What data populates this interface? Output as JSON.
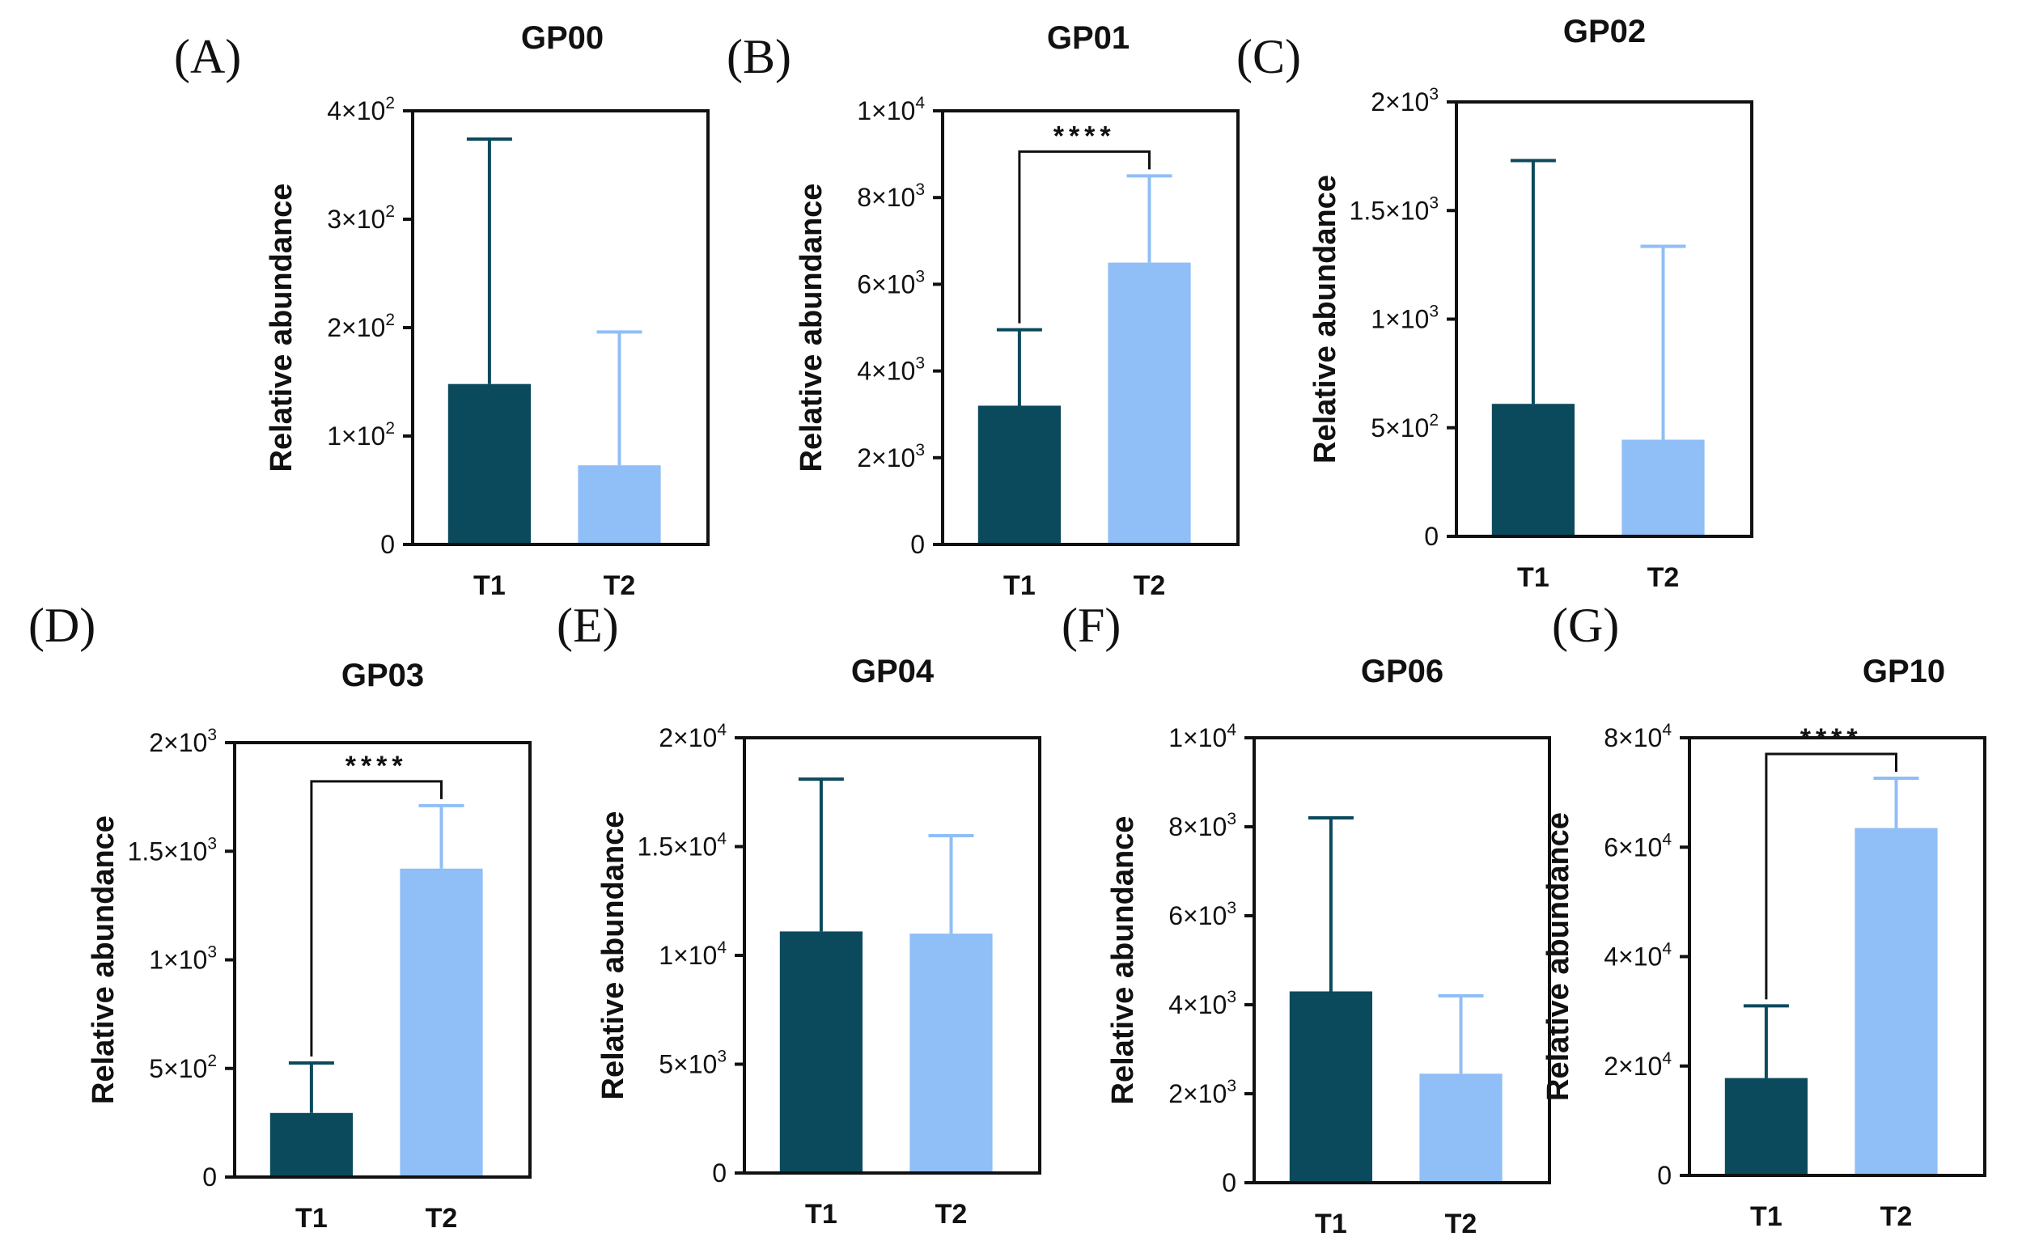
{
  "colors": {
    "T1": "#0b4a5c",
    "T2": "#90bef6",
    "axis": "#111111"
  },
  "chart_data": [
    {
      "panel": "(A)",
      "title": "GP00",
      "type": "bar",
      "ylabel": "Relative abundance",
      "categories": [
        "T1",
        "T2"
      ],
      "values": [
        148,
        73
      ],
      "errors": [
        226,
        123
      ],
      "ylim": [
        0,
        400
      ],
      "yticks": [
        {
          "v": 0,
          "m": "0",
          "e": ""
        },
        {
          "v": 100,
          "m": "1×10",
          "e": "2"
        },
        {
          "v": 200,
          "m": "2×10",
          "e": "2"
        },
        {
          "v": 300,
          "m": "3×10",
          "e": "2"
        },
        {
          "v": 400,
          "m": "4×10",
          "e": "2"
        }
      ],
      "significance": null
    },
    {
      "panel": "(B)",
      "title": "GP01",
      "type": "bar",
      "ylabel": "Relative abundance",
      "categories": [
        "T1",
        "T2"
      ],
      "values": [
        3200,
        6500
      ],
      "errors": [
        1750,
        2000
      ],
      "ylim": [
        0,
        10000
      ],
      "yticks": [
        {
          "v": 0,
          "m": "0",
          "e": ""
        },
        {
          "v": 2000,
          "m": "2×10",
          "e": "3"
        },
        {
          "v": 4000,
          "m": "4×10",
          "e": "3"
        },
        {
          "v": 6000,
          "m": "6×10",
          "e": "3"
        },
        {
          "v": 8000,
          "m": "8×10",
          "e": "3"
        },
        {
          "v": 10000,
          "m": "1×10",
          "e": "4"
        }
      ],
      "significance": "****"
    },
    {
      "panel": "(C)",
      "title": "GP02",
      "type": "bar",
      "ylabel": "Relative abundance",
      "categories": [
        "T1",
        "T2"
      ],
      "values": [
        610,
        445
      ],
      "errors": [
        1120,
        890
      ],
      "ylim": [
        0,
        2000
      ],
      "yticks": [
        {
          "v": 0,
          "m": "0",
          "e": ""
        },
        {
          "v": 500,
          "m": "5×10",
          "e": "2"
        },
        {
          "v": 1000,
          "m": "1×10",
          "e": "3"
        },
        {
          "v": 1500,
          "m": "1.5×10",
          "e": "3"
        },
        {
          "v": 2000,
          "m": "2×10",
          "e": "3"
        }
      ],
      "significance": null
    },
    {
      "panel": "(D)",
      "title": "GP03",
      "type": "bar",
      "ylabel": "Relative abundance",
      "categories": [
        "T1",
        "T2"
      ],
      "values": [
        295,
        1420
      ],
      "errors": [
        230,
        290
      ],
      "ylim": [
        0,
        2000
      ],
      "yticks": [
        {
          "v": 0,
          "m": "0",
          "e": ""
        },
        {
          "v": 500,
          "m": "5×10",
          "e": "2"
        },
        {
          "v": 1000,
          "m": "1×10",
          "e": "3"
        },
        {
          "v": 1500,
          "m": "1.5×10",
          "e": "3"
        },
        {
          "v": 2000,
          "m": "2×10",
          "e": "3"
        }
      ],
      "significance": "****"
    },
    {
      "panel": "(E)",
      "title": "GP04",
      "type": "bar",
      "ylabel": "Relative abundance",
      "categories": [
        "T1",
        "T2"
      ],
      "values": [
        11100,
        11000
      ],
      "errors": [
        7000,
        4500
      ],
      "ylim": [
        0,
        20000
      ],
      "yticks": [
        {
          "v": 0,
          "m": "0",
          "e": ""
        },
        {
          "v": 5000,
          "m": "5×10",
          "e": "3"
        },
        {
          "v": 10000,
          "m": "1×10",
          "e": "4"
        },
        {
          "v": 15000,
          "m": "1.5×10",
          "e": "4"
        },
        {
          "v": 20000,
          "m": "2×10",
          "e": "4"
        }
      ],
      "significance": null
    },
    {
      "panel": "(F)",
      "title": "GP06",
      "type": "bar",
      "ylabel": "Relative abundance",
      "categories": [
        "T1",
        "T2"
      ],
      "values": [
        4300,
        2450
      ],
      "errors": [
        3900,
        1750
      ],
      "ylim": [
        0,
        10000
      ],
      "yticks": [
        {
          "v": 0,
          "m": "0",
          "e": ""
        },
        {
          "v": 2000,
          "m": "2×10",
          "e": "3"
        },
        {
          "v": 4000,
          "m": "4×10",
          "e": "3"
        },
        {
          "v": 6000,
          "m": "6×10",
          "e": "3"
        },
        {
          "v": 8000,
          "m": "8×10",
          "e": "3"
        },
        {
          "v": 10000,
          "m": "1×10",
          "e": "4"
        }
      ],
      "significance": null
    },
    {
      "panel": "(G)",
      "title": "GP10",
      "type": "bar",
      "ylabel": "Relative abundance",
      "categories": [
        "T1",
        "T2"
      ],
      "values": [
        17800,
        63500
      ],
      "errors": [
        13200,
        9100
      ],
      "ylim": [
        0,
        80000
      ],
      "yticks": [
        {
          "v": 0,
          "m": "0",
          "e": ""
        },
        {
          "v": 20000,
          "m": "2×10",
          "e": "4"
        },
        {
          "v": 40000,
          "m": "4×10",
          "e": "4"
        },
        {
          "v": 60000,
          "m": "6×10",
          "e": "4"
        },
        {
          "v": 80000,
          "m": "8×10",
          "e": "4"
        }
      ],
      "significance": "****"
    }
  ]
}
